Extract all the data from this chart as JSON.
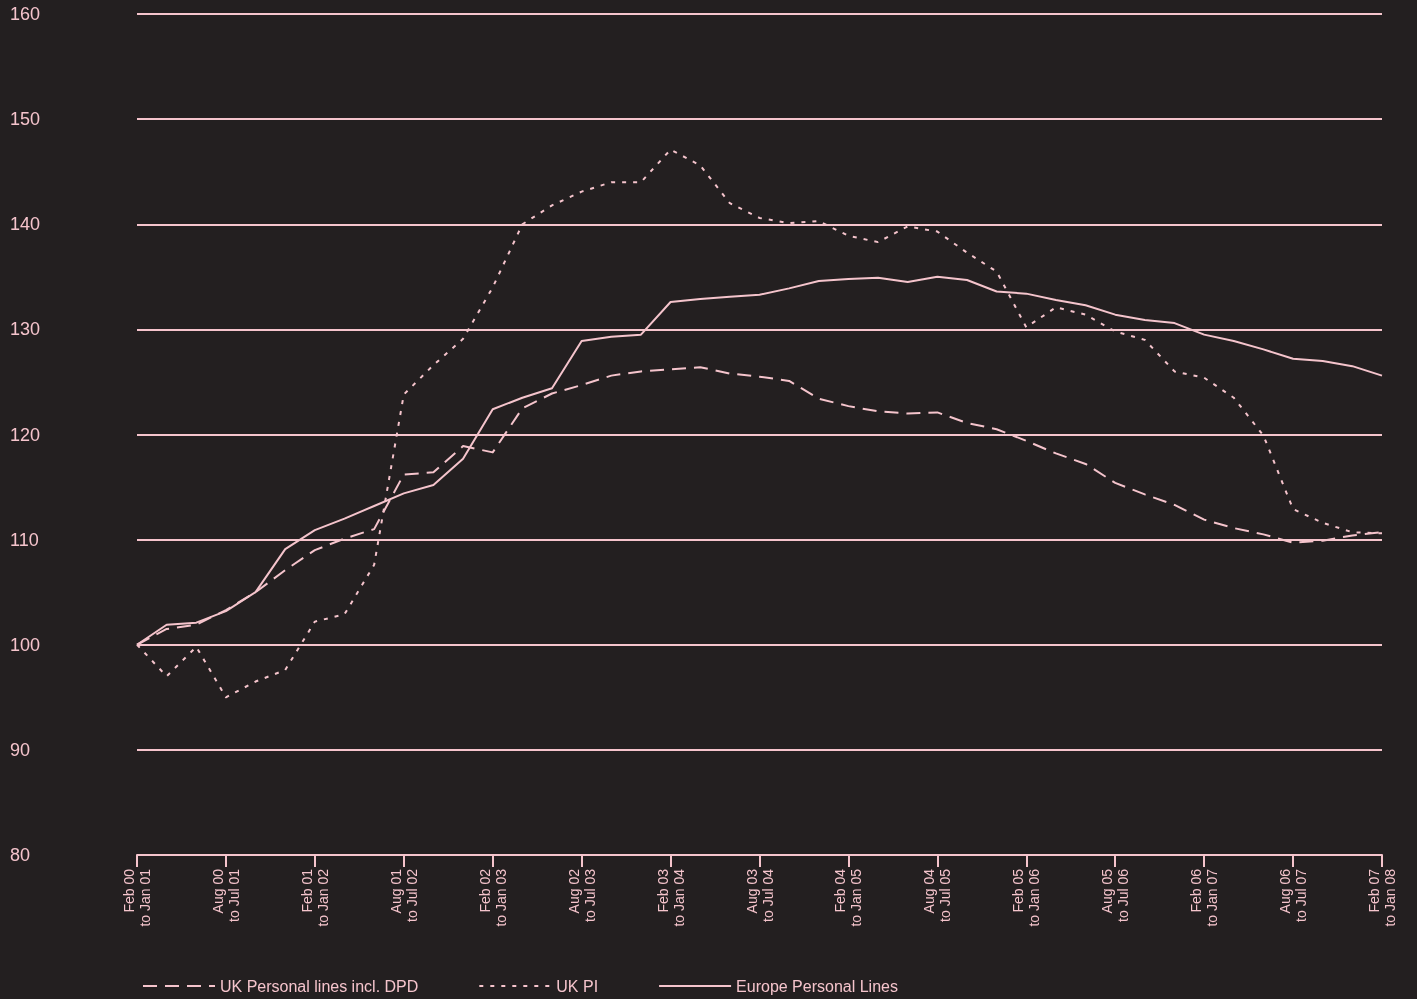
{
  "chart_data": {
    "type": "line",
    "categories": [
      "Feb 00\nto Jan 01",
      null,
      null,
      "Aug 00\nto Jul 01",
      null,
      null,
      "Feb 01\nto Jan 02",
      null,
      null,
      "Aug 01\nto Jul 02",
      null,
      null,
      "Feb 02\nto Jan 03",
      null,
      null,
      "Aug 02\nto Jul 03",
      null,
      null,
      "Feb 03\nto Jan 04",
      null,
      null,
      "Aug 03\nto Jul 04",
      null,
      null,
      "Feb 04\nto Jan 05",
      null,
      null,
      "Aug 04\nto Jul 05",
      null,
      null,
      "Feb 05\nto Jan 06",
      null,
      null,
      "Aug 05\nto Jul 06",
      null,
      null,
      "Feb 06\nto Jan 07",
      null,
      null,
      "Aug 06\nto Jul 07",
      null,
      null,
      "Feb 07\nto Jan 08"
    ],
    "series": [
      {
        "name": "UK Personal lines incl. DPD",
        "color": "#f5c4cc",
        "line_style": "dashed",
        "values": [
          100,
          101.5,
          101.9,
          103.3,
          105,
          107.1,
          109.0,
          110.1,
          111.0,
          116.2,
          116.4,
          118.9,
          118.3,
          122.5,
          123.9,
          124.7,
          125.6,
          126.0,
          126.2,
          126.4,
          125.8,
          125.5,
          125.1,
          123.4,
          122.7,
          122.2,
          122.0,
          122.1,
          121.1,
          120.5,
          119.4,
          118.2,
          117.2,
          115.4,
          114.3,
          113.3,
          111.9,
          111.1,
          110.5,
          109.7,
          109.9,
          110.4,
          110.7
        ]
      },
      {
        "name": "UK PI",
        "color": "#f5c4cc",
        "line_style": "dotted",
        "values": [
          100,
          97.0,
          99.8,
          95.0,
          96.5,
          97.6,
          102.2,
          102.9,
          107.6,
          123.8,
          126.6,
          129.1,
          134.0,
          140.0,
          141.8,
          143.1,
          144.0,
          144.0,
          147.1,
          145.6,
          142.0,
          140.6,
          140.1,
          140.3,
          138.9,
          138.3,
          139.8,
          139.3,
          137.3,
          135.5,
          130.2,
          132.1,
          131.4,
          129.8,
          129.0,
          126.0,
          125.4,
          123.5,
          119.9,
          112.9,
          111.6,
          110.7,
          110.6
        ]
      },
      {
        "name": "Europe Personal Lines",
        "color": "#f5c4cc",
        "line_style": "solid",
        "values": [
          100,
          101.9,
          102.1,
          103.2,
          105,
          109.1,
          110.9,
          112.0,
          113.2,
          114.4,
          115.2,
          117.7,
          122.4,
          123.5,
          124.4,
          128.9,
          129.3,
          129.5,
          132.6,
          132.9,
          133.1,
          133.3,
          133.9,
          134.6,
          134.8,
          134.9,
          134.5,
          135.0,
          134.7,
          133.6,
          133.4,
          132.8,
          132.3,
          131.4,
          130.9,
          130.6,
          129.5,
          128.9,
          128.1,
          127.2,
          127.0,
          126.5,
          125.6
        ]
      }
    ],
    "ylim": [
      80,
      160
    ],
    "yticks": [
      80,
      90,
      100,
      110,
      120,
      130,
      140,
      150,
      160
    ],
    "grid": "y",
    "legend": "bottom left",
    "marker": "none"
  }
}
